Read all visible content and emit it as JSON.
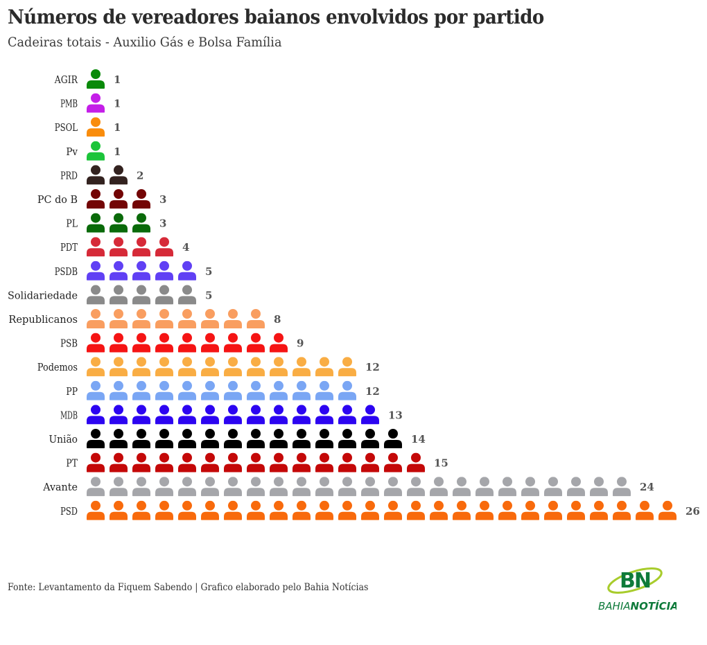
{
  "title": "Números de vereadores baianos envolvidos por partido",
  "subtitle": "Cadeiras totais - Auxilio Gás e Bolsa Família",
  "footer": "Fonte: Levantamento da Fiquem Sabendo | Grafico elaborado pelo Bahia Notícias",
  "logo": {
    "mark": "BN",
    "word1": "BAHIA",
    "word2": "NOTÍCIAS",
    "green": "#0e7a3a",
    "lime": "#a8cc2c"
  },
  "chart_data": {
    "type": "bar",
    "style": "pictogram",
    "icon": "person-icon",
    "title": "Números de vereadores baianos envolvidos por partido",
    "subtitle": "Cadeiras totais - Auxilio Gás e Bolsa Família",
    "xlabel": "",
    "ylabel": "",
    "categories": [
      "AGIR",
      "PMB",
      "PSOL",
      "Pv",
      "PRD",
      "PC do B",
      "PL",
      "PDT",
      "PSDB",
      "Solidariedade",
      "Republicanos",
      "PSB",
      "Podemos",
      "PP",
      "MDB",
      "União",
      "PT",
      "Avante",
      "PSD"
    ],
    "values": [
      1,
      1,
      1,
      1,
      2,
      3,
      3,
      4,
      5,
      5,
      8,
      9,
      12,
      12,
      13,
      14,
      15,
      24,
      26
    ],
    "colors": [
      "#0a8a0a",
      "#c41ee8",
      "#f98c0c",
      "#1cc43a",
      "#33221f",
      "#730505",
      "#0a6a0a",
      "#d62a38",
      "#6040f4",
      "#8a8a8a",
      "#f99e60",
      "#f51414",
      "#f9ad44",
      "#7aa6f4",
      "#2c04f1",
      "#000000",
      "#c40808",
      "#a5a6aa",
      "#f86a0c"
    ],
    "grid": false,
    "legend": "none"
  }
}
